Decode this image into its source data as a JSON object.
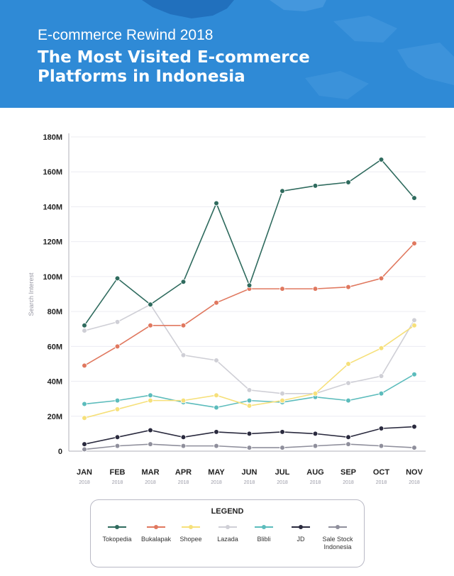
{
  "header": {
    "subtitle": "E-commerce Rewind 2018",
    "title": "The Most Visited E-commerce Platforms in Indonesia"
  },
  "legend": {
    "title": "LEGEND"
  },
  "chart_data": {
    "type": "line",
    "title": "The Most Visited E-commerce Platforms in Indonesia",
    "subtitle": "E-commerce Rewind 2018",
    "xlabel": "",
    "ylabel": "Search Interest",
    "categories": [
      "JAN",
      "FEB",
      "MAR",
      "APR",
      "MAY",
      "JUN",
      "JUL",
      "AUG",
      "SEP",
      "OCT",
      "NOV"
    ],
    "category_sublabel": "2018",
    "ylim": [
      0,
      180000000
    ],
    "yticks": [
      "0",
      "20M",
      "40M",
      "60M",
      "80M",
      "100M",
      "120M",
      "140M",
      "160M",
      "180M"
    ],
    "grid": true,
    "legend_position": "bottom",
    "series": [
      {
        "name": "Tokopedia",
        "color": "#2f6b5e",
        "values": [
          72000000,
          99000000,
          84000000,
          97000000,
          142000000,
          95000000,
          149000000,
          152000000,
          154000000,
          167000000,
          145000000
        ]
      },
      {
        "name": "Bukalapak",
        "color": "#e0785f",
        "values": [
          49000000,
          60000000,
          72000000,
          72000000,
          85000000,
          93000000,
          93000000,
          93000000,
          94000000,
          99000000,
          119000000
        ]
      },
      {
        "name": "Shopee",
        "color": "#f6e07a",
        "values": [
          19000000,
          24000000,
          29000000,
          29000000,
          32000000,
          26000000,
          29000000,
          33000000,
          50000000,
          59000000,
          72000000
        ]
      },
      {
        "name": "Lazada",
        "color": "#cfcfd6",
        "values": [
          69000000,
          74000000,
          84000000,
          55000000,
          52000000,
          35000000,
          33000000,
          33000000,
          39000000,
          43000000,
          75000000
        ]
      },
      {
        "name": "Blibli",
        "color": "#5cbcbc",
        "values": [
          27000000,
          29000000,
          32000000,
          28000000,
          25000000,
          29000000,
          28000000,
          31000000,
          29000000,
          33000000,
          44000000
        ]
      },
      {
        "name": "JD",
        "color": "#2a2a3e",
        "values": [
          4000000,
          8000000,
          12000000,
          8000000,
          11000000,
          10000000,
          11000000,
          10000000,
          8000000,
          13000000,
          14000000
        ]
      },
      {
        "name": "Sale Stock Indonesia",
        "color": "#8f8f9c",
        "values": [
          1000000,
          3000000,
          4000000,
          3000000,
          3000000,
          2000000,
          2000000,
          3000000,
          4000000,
          3000000,
          2000000
        ]
      }
    ]
  }
}
